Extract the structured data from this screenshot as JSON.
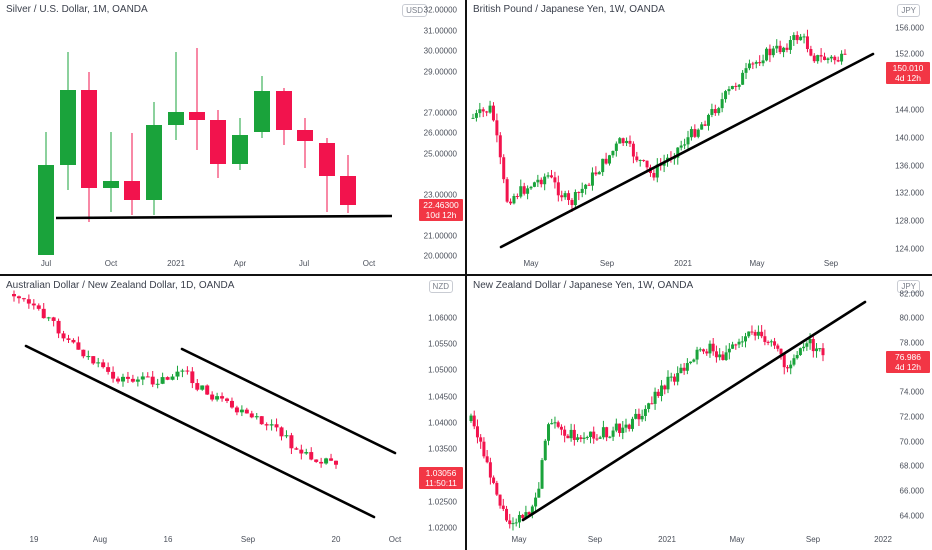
{
  "panels": [
    {
      "title": "Silver / U.S. Dollar, 1M, OANDA",
      "currency": "USD",
      "price_value": "22.46300",
      "price_countdown": "10d 12h",
      "y_axis_labels": [
        "32.00000",
        "31.00000",
        "30.00000",
        "29.00000",
        "27.00000",
        "26.00000",
        "25.00000",
        "23.00000",
        "21.00000",
        "20.00000"
      ],
      "x_axis_labels": [
        "Jul",
        "Oct",
        "2021",
        "Apr",
        "Jul",
        "Oct"
      ],
      "colors": {
        "up": "#1aa33b",
        "down": "#f2134d",
        "line": "#000000"
      }
    },
    {
      "title": "British Pound / Japanese Yen, 1W, OANDA",
      "currency": "JPY",
      "price_value": "150.010",
      "price_countdown": "4d 12h",
      "y_axis_labels": [
        "156.000",
        "152.000",
        "144.000",
        "140.000",
        "136.000",
        "132.000",
        "128.000",
        "124.000"
      ],
      "x_axis_labels": [
        "May",
        "Sep",
        "2021",
        "May",
        "Sep"
      ],
      "colors": {
        "up": "#1aa33b",
        "down": "#f2134d",
        "line": "#000000"
      }
    },
    {
      "title": "Australian Dollar / New Zealand Dollar, 1D, OANDA",
      "currency": "NZD",
      "price_value": "1.03056",
      "price_countdown": "11:50:11",
      "y_axis_labels": [
        "1.06000",
        "1.05500",
        "1.05000",
        "1.04500",
        "1.04000",
        "1.03500",
        "1.02500",
        "1.02000"
      ],
      "x_axis_labels": [
        "19",
        "Aug",
        "16",
        "Sep",
        "20",
        "Oct"
      ],
      "colors": {
        "up": "#1aa33b",
        "down": "#f2134d",
        "line": "#000000"
      }
    },
    {
      "title": "New Zealand Dollar / Japanese Yen, 1W, OANDA",
      "currency": "JPY",
      "price_value": "76.986",
      "price_countdown": "4d 12h",
      "y_axis_labels": [
        "82.000",
        "80.000",
        "78.000",
        "74.000",
        "72.000",
        "70.000",
        "68.000",
        "66.000",
        "64.000"
      ],
      "x_axis_labels": [
        "May",
        "Sep",
        "2021",
        "May",
        "Sep",
        "2022"
      ],
      "colors": {
        "up": "#1aa33b",
        "down": "#f2134d",
        "line": "#000000"
      }
    }
  ]
}
